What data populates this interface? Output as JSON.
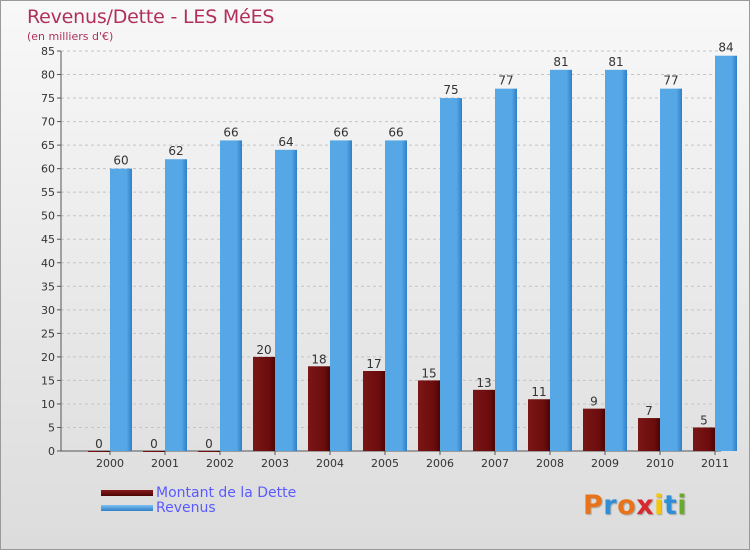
{
  "title": "Revenus/Dette - LES MéES",
  "subtitle": "(en milliers d'€)",
  "legend": {
    "debt_label": "Montant de la Dette",
    "revenue_label": "Revenus"
  },
  "logo": {
    "text": "Proxiti",
    "letter_colors": [
      "#e8731a",
      "#2f8fd6",
      "#e8731a",
      "#d8292f",
      "#f3c50f",
      "#2f8fd6",
      "#6aaa2a"
    ]
  },
  "colors": {
    "debt": "#6b0c0c",
    "revenue": "#56a7e6",
    "title": "#b0305a",
    "legend_text": "#5a5aff"
  },
  "chart_data": {
    "type": "bar",
    "categories": [
      "2000",
      "2001",
      "2002",
      "2003",
      "2004",
      "2005",
      "2006",
      "2007",
      "2008",
      "2009",
      "2010",
      "2011"
    ],
    "series": [
      {
        "name": "Montant de la Dette",
        "values": [
          0,
          0,
          0,
          20,
          18,
          17,
          15,
          13,
          11,
          9,
          7,
          5
        ]
      },
      {
        "name": "Revenus",
        "values": [
          60,
          62,
          66,
          64,
          66,
          66,
          75,
          77,
          81,
          81,
          77,
          84
        ]
      }
    ],
    "title": "Revenus/Dette - LES MéES",
    "ylabel": "(en milliers d'€)",
    "ylim": [
      0,
      85
    ],
    "yticks": [
      0,
      5,
      10,
      15,
      20,
      25,
      30,
      35,
      40,
      45,
      50,
      55,
      60,
      65,
      70,
      75,
      80,
      85
    ],
    "grid": true,
    "legend_position": "bottom-left"
  }
}
